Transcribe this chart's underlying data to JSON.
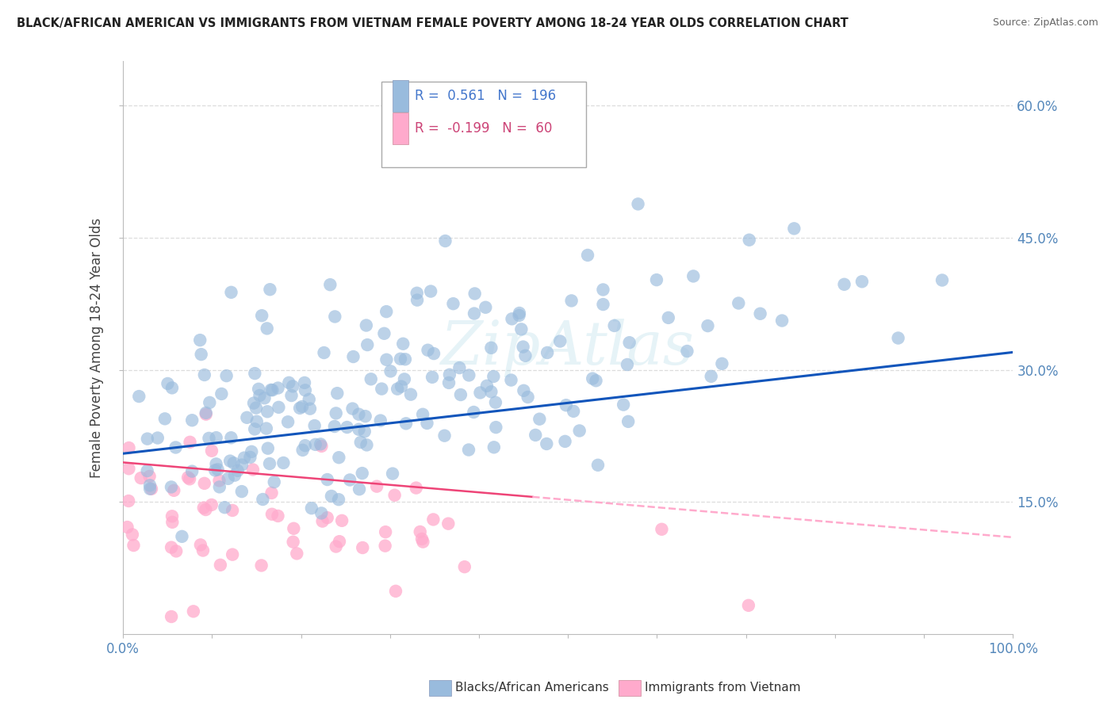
{
  "title": "BLACK/AFRICAN AMERICAN VS IMMIGRANTS FROM VIETNAM FEMALE POVERTY AMONG 18-24 YEAR OLDS CORRELATION CHART",
  "source": "Source: ZipAtlas.com",
  "ylabel": "Female Poverty Among 18-24 Year Olds",
  "ytick_positions": [
    0.15,
    0.3,
    0.45,
    0.6
  ],
  "ytick_labels": [
    "15.0%",
    "30.0%",
    "45.0%",
    "60.0%"
  ],
  "xlim": [
    0.0,
    1.0
  ],
  "ylim": [
    0.0,
    0.65
  ],
  "blue_R": 0.561,
  "blue_N": 196,
  "pink_R": -0.199,
  "pink_N": 60,
  "blue_color": "#99BBDD",
  "pink_color": "#FFAACC",
  "blue_line_color": "#1155BB",
  "pink_line_color": "#EE4477",
  "pink_dash_color": "#FFAACC",
  "background_color": "#FFFFFF",
  "legend_label_blue": "Blacks/African Americans",
  "legend_label_pink": "Immigrants from Vietnam",
  "watermark": "ZipAtlas",
  "blue_scatter_seed": 42,
  "pink_scatter_seed": 7,
  "blue_intercept": 0.205,
  "blue_slope": 0.115,
  "pink_intercept": 0.195,
  "pink_slope": -0.085
}
